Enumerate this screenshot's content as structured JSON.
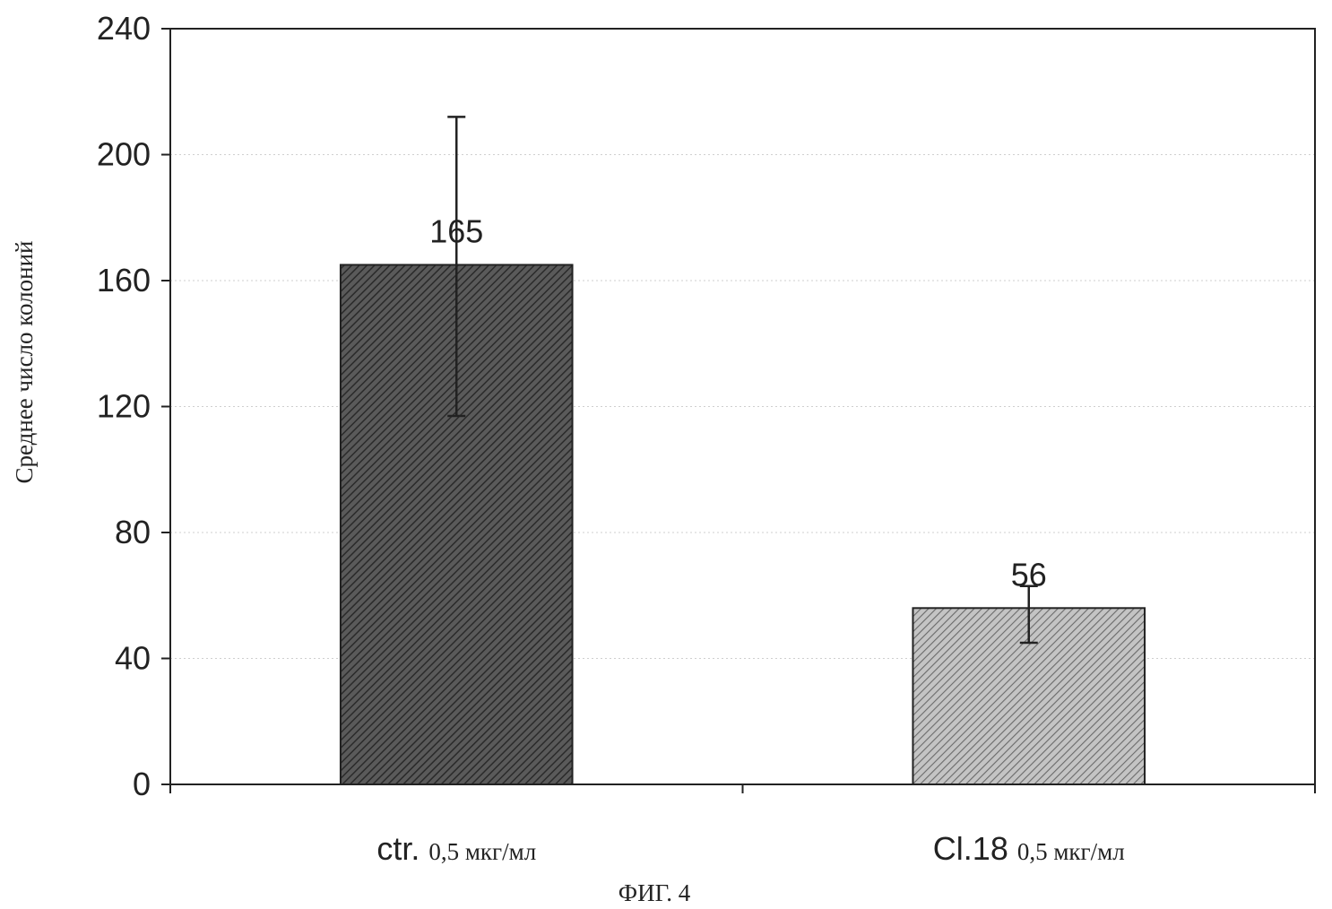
{
  "chart_data": {
    "type": "bar",
    "categories": [
      {
        "label": "ctr.",
        "unit": "0,5 мкг/мл"
      },
      {
        "label": "Cl.18",
        "unit": "0,5 мкг/мл"
      }
    ],
    "values": [
      165,
      56
    ],
    "data_labels": [
      "165",
      "56"
    ],
    "error_bars": [
      {
        "low": 117,
        "high": 212
      },
      {
        "low": 45,
        "high": 63
      }
    ],
    "ylabel": "Среднее число колоний",
    "xlabel": "",
    "ylim": [
      0,
      240
    ],
    "yticks": [
      0,
      40,
      80,
      120,
      160,
      200,
      240
    ],
    "grid": true,
    "colors": {
      "bar_1": "#4a4a4a",
      "bar_2": "#9a9a9a",
      "axis": "#222222",
      "grid": "#c8c8c8"
    }
  },
  "caption": "ФИГ. 4"
}
